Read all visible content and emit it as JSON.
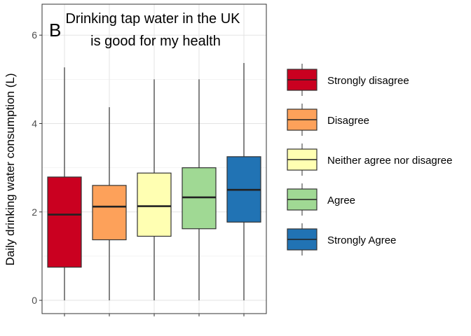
{
  "chart_data": {
    "type": "boxplot",
    "panel_tag": "B",
    "title_lines": [
      "Drinking tap water in the UK",
      "is good for my health"
    ],
    "xlabel": "",
    "ylabel": "Daily drinking water consumption (L)",
    "ylim": [
      -0.3,
      6.7
    ],
    "yticks": [
      0,
      2,
      4,
      6
    ],
    "grid": true,
    "legend_position": "right",
    "series": [
      {
        "name": "Strongly disagree",
        "color": "#ca0020",
        "min": 0,
        "q1": 0.75,
        "median": 1.94,
        "q3": 2.79,
        "max": 5.27
      },
      {
        "name": "Disagree",
        "color": "#fda15a",
        "min": 0,
        "q1": 1.37,
        "median": 2.12,
        "q3": 2.6,
        "max": 4.37
      },
      {
        "name": "Neither agree nor disagree",
        "color": "#ffffb2",
        "min": 0,
        "q1": 1.45,
        "median": 2.13,
        "q3": 2.88,
        "max": 5.0
      },
      {
        "name": "Agree",
        "color": "#a0d994",
        "min": 0,
        "q1": 1.62,
        "median": 2.33,
        "q3": 3.0,
        "max": 5.0
      },
      {
        "name": "Strongly Agree",
        "color": "#2173b4",
        "min": 0,
        "q1": 1.77,
        "median": 2.5,
        "q3": 3.25,
        "max": 5.37
      }
    ]
  }
}
